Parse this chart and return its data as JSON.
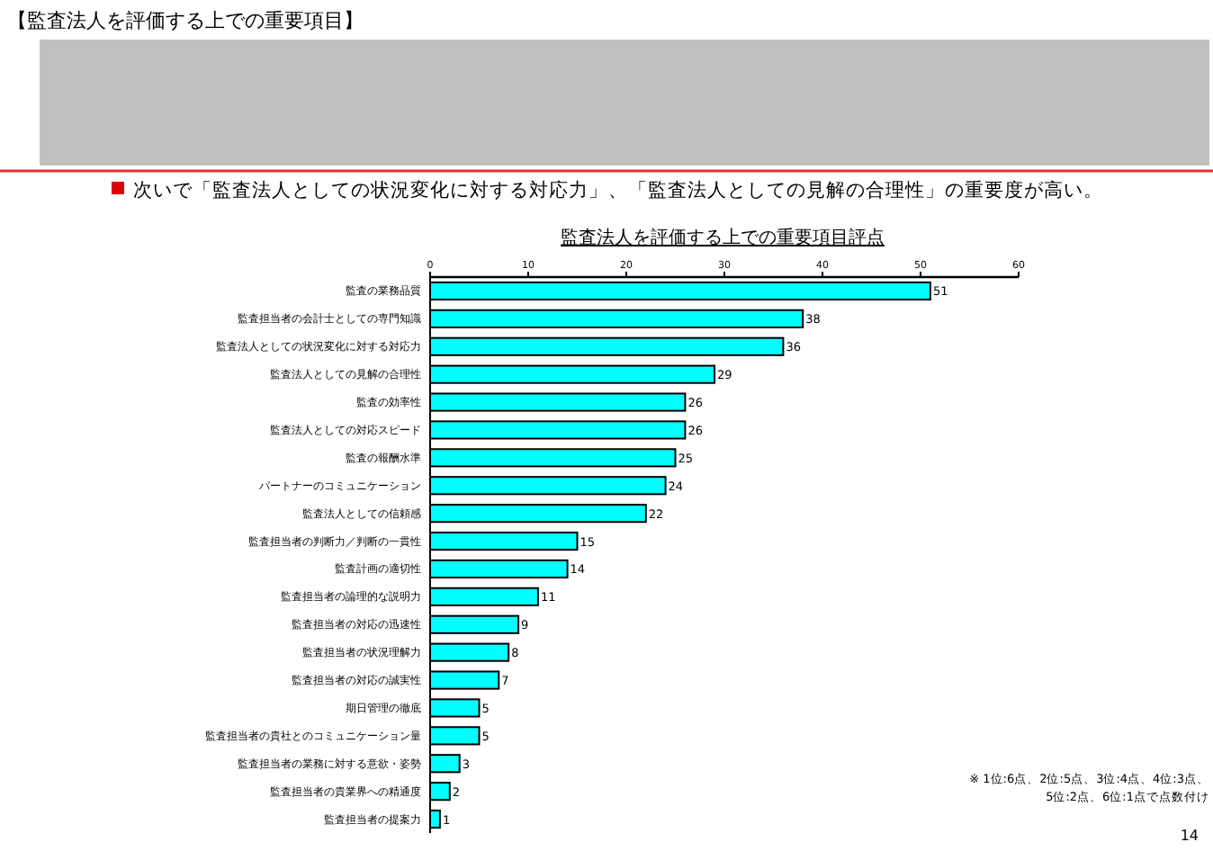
{
  "chart_data": {
    "type": "bar",
    "orientation": "horizontal",
    "title": "監査法人を評価する上での重要項目評点",
    "annotations": [
      "【監査法人を評価する上での重要項目】",
      "次いで「監査法人としての状況変化に対する対応力」、「監査法人としての見解の合理性」の重要度が高い。",
      "※ 1位:6点、2位:5点、3位:4点、4位:3点、5位:2点、6位:1点で点数付け",
      "14"
    ],
    "categories": [
      "監査の業務品質",
      "監査担当者の会計士としての専門知識",
      "監査法人としての状況変化に対する対応力",
      "監査法人としての見解の合理性",
      "監査の効率性",
      "監査法人としての対応スピード",
      "監査の報酬水準",
      "パートナーのコミュニケーション",
      "監査法人としての信頼感",
      "監査担当者の判断力／判断の一貫性",
      "監査計画の適切性",
      "監査担当者の論理的な説明力",
      "監査担当者の対応の迅速性",
      "監査担当者の状況理解力",
      "監査担当者の対応の誠実性",
      "期日管理の徹底",
      "監査担当者の貴社とのコミュニケーション量",
      "監査担当者の業務に対する意欲・姿勢",
      "監査担当者の貴業界への精通度",
      "監査担当者の提案力"
    ],
    "values": [
      51,
      38,
      36,
      29,
      26,
      26,
      25,
      24,
      22,
      15,
      14,
      11,
      9,
      8,
      7,
      5,
      5,
      3,
      2,
      1
    ],
    "color": "#00ffff",
    "xlim": [
      0,
      60
    ],
    "xticks": [
      0,
      10,
      20,
      30,
      40,
      50,
      60
    ],
    "data_labels": true,
    "grid": false
  }
}
